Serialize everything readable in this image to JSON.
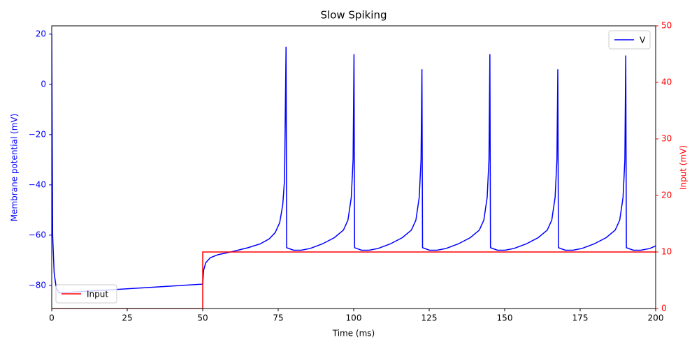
{
  "chart_data": {
    "type": "line",
    "title": "Slow Spiking",
    "xlabel": "Time (ms)",
    "ylabel": "Membrane potential (mV)",
    "y2label": "Input (mV)",
    "xlim": [
      0,
      200
    ],
    "xticks": [
      0,
      25,
      50,
      75,
      100,
      125,
      150,
      175,
      200
    ],
    "ylim": [
      -89.2,
      23.3
    ],
    "yticks": [
      {
        "value": -80,
        "label": "−80"
      },
      {
        "value": -60,
        "label": "−60"
      },
      {
        "value": -40,
        "label": "−40"
      },
      {
        "value": -20,
        "label": "−20"
      },
      0,
      20
    ],
    "ylabel_color": "#0000ff",
    "y2lim": [
      0,
      50
    ],
    "y2ticks": [
      0,
      10,
      20,
      30,
      40,
      50
    ],
    "y2label_color": "#ff0000",
    "series": [
      {
        "name": "V",
        "color": "#0000ff",
        "legend": "upper right",
        "x": [
          0,
          0.3,
          0.8,
          1.5,
          2.5,
          50,
          50.3,
          51,
          52.5,
          55,
          60,
          65,
          69,
          72,
          74,
          75.5,
          76.5,
          77.1,
          77.6,
          77.8,
          80.1,
          82.6,
          85.6,
          89.6,
          93.6,
          96.6,
          98.1,
          99.2,
          99.8,
          100.1,
          100.3,
          102.6,
          105.1,
          108.1,
          112.1,
          116.1,
          119.1,
          120.6,
          121.7,
          122.3,
          122.6,
          122.8,
          125.1,
          127.6,
          130.6,
          134.6,
          138.6,
          141.6,
          143.1,
          144.2,
          144.8,
          145.1,
          145.3,
          147.6,
          150.1,
          153.1,
          157.1,
          161.1,
          164.1,
          165.6,
          166.7,
          167.3,
          167.6,
          167.8,
          170.1,
          172.6,
          175.6,
          179.6,
          183.6,
          186.6,
          188.1,
          189.2,
          189.8,
          190.1,
          190.3,
          192.6,
          195.1,
          198.1,
          200
        ],
        "values": [
          20,
          -60,
          -75,
          -81,
          -83,
          -79.5,
          -74,
          -71,
          -69,
          -67.8,
          -66.5,
          -65,
          -63.5,
          -61.5,
          -59,
          -55,
          -48,
          -38,
          15,
          -65,
          -66,
          -66,
          -65.3,
          -63.5,
          -61,
          -58,
          -54,
          -45,
          -30,
          12,
          -65,
          -66,
          -66,
          -65.3,
          -63.5,
          -61,
          -58,
          -54,
          -45,
          -30,
          6,
          -65,
          -66,
          -66,
          -65.3,
          -63.5,
          -61,
          -58,
          -54,
          -45,
          -30,
          12,
          -65,
          -66,
          -66,
          -65.3,
          -63.5,
          -61,
          -58,
          -54,
          -45,
          -30,
          6,
          -65,
          -66,
          -66,
          -65.3,
          -63.5,
          -61,
          -58,
          -54,
          -45,
          -30,
          11.5,
          -65,
          -66,
          -66,
          -65.3,
          -64.3
        ]
      },
      {
        "name": "Input",
        "color": "#ff0000",
        "axis": "y2",
        "legend": "lower left",
        "x": [
          0,
          50,
          50,
          200
        ],
        "values": [
          0,
          0,
          10,
          10
        ]
      }
    ]
  }
}
